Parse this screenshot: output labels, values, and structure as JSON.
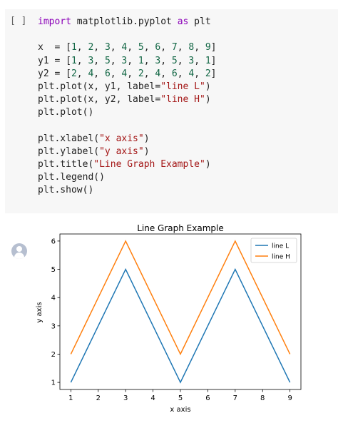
{
  "cell": {
    "run_indicator": "[ ]",
    "code_lines": [
      [
        {
          "t": "import",
          "c": "kw"
        },
        {
          "t": " matplotlib.pyplot ",
          "c": "op"
        },
        {
          "t": "as",
          "c": "kw"
        },
        {
          "t": " plt",
          "c": "op"
        }
      ],
      [],
      [
        {
          "t": "x  = [",
          "c": "op"
        },
        {
          "t": "1",
          "c": "num"
        },
        {
          "t": ", ",
          "c": "op"
        },
        {
          "t": "2",
          "c": "num"
        },
        {
          "t": ", ",
          "c": "op"
        },
        {
          "t": "3",
          "c": "num"
        },
        {
          "t": ", ",
          "c": "op"
        },
        {
          "t": "4",
          "c": "num"
        },
        {
          "t": ", ",
          "c": "op"
        },
        {
          "t": "5",
          "c": "num"
        },
        {
          "t": ", ",
          "c": "op"
        },
        {
          "t": "6",
          "c": "num"
        },
        {
          "t": ", ",
          "c": "op"
        },
        {
          "t": "7",
          "c": "num"
        },
        {
          "t": ", ",
          "c": "op"
        },
        {
          "t": "8",
          "c": "num"
        },
        {
          "t": ", ",
          "c": "op"
        },
        {
          "t": "9",
          "c": "num"
        },
        {
          "t": "]",
          "c": "op"
        }
      ],
      [
        {
          "t": "y1 = [",
          "c": "op"
        },
        {
          "t": "1",
          "c": "num"
        },
        {
          "t": ", ",
          "c": "op"
        },
        {
          "t": "3",
          "c": "num"
        },
        {
          "t": ", ",
          "c": "op"
        },
        {
          "t": "5",
          "c": "num"
        },
        {
          "t": ", ",
          "c": "op"
        },
        {
          "t": "3",
          "c": "num"
        },
        {
          "t": ", ",
          "c": "op"
        },
        {
          "t": "1",
          "c": "num"
        },
        {
          "t": ", ",
          "c": "op"
        },
        {
          "t": "3",
          "c": "num"
        },
        {
          "t": ", ",
          "c": "op"
        },
        {
          "t": "5",
          "c": "num"
        },
        {
          "t": ", ",
          "c": "op"
        },
        {
          "t": "3",
          "c": "num"
        },
        {
          "t": ", ",
          "c": "op"
        },
        {
          "t": "1",
          "c": "num"
        },
        {
          "t": "]",
          "c": "op"
        }
      ],
      [
        {
          "t": "y2 = [",
          "c": "op"
        },
        {
          "t": "2",
          "c": "num"
        },
        {
          "t": ", ",
          "c": "op"
        },
        {
          "t": "4",
          "c": "num"
        },
        {
          "t": ", ",
          "c": "op"
        },
        {
          "t": "6",
          "c": "num"
        },
        {
          "t": ", ",
          "c": "op"
        },
        {
          "t": "4",
          "c": "num"
        },
        {
          "t": ", ",
          "c": "op"
        },
        {
          "t": "2",
          "c": "num"
        },
        {
          "t": ", ",
          "c": "op"
        },
        {
          "t": "4",
          "c": "num"
        },
        {
          "t": ", ",
          "c": "op"
        },
        {
          "t": "6",
          "c": "num"
        },
        {
          "t": ", ",
          "c": "op"
        },
        {
          "t": "4",
          "c": "num"
        },
        {
          "t": ", ",
          "c": "op"
        },
        {
          "t": "2",
          "c": "num"
        },
        {
          "t": "]",
          "c": "op"
        }
      ],
      [
        {
          "t": "plt.plot(x, y1, label=",
          "c": "op"
        },
        {
          "t": "\"line L\"",
          "c": "str"
        },
        {
          "t": ")",
          "c": "op"
        }
      ],
      [
        {
          "t": "plt.plot(x, y2, label=",
          "c": "op"
        },
        {
          "t": "\"line H\"",
          "c": "str"
        },
        {
          "t": ")",
          "c": "op"
        }
      ],
      [
        {
          "t": "plt.plot()",
          "c": "op"
        }
      ],
      [],
      [
        {
          "t": "plt.xlabel(",
          "c": "op"
        },
        {
          "t": "\"x axis\"",
          "c": "str"
        },
        {
          "t": ")",
          "c": "op"
        }
      ],
      [
        {
          "t": "plt.ylabel(",
          "c": "op"
        },
        {
          "t": "\"y axis\"",
          "c": "str"
        },
        {
          "t": ")",
          "c": "op"
        }
      ],
      [
        {
          "t": "plt.title(",
          "c": "op"
        },
        {
          "t": "\"Line Graph Example\"",
          "c": "str"
        },
        {
          "t": ")",
          "c": "op"
        }
      ],
      [
        {
          "t": "plt.legend()",
          "c": "op"
        }
      ],
      [
        {
          "t": "plt.show()",
          "c": "op"
        }
      ]
    ]
  },
  "output": {
    "avatar_icon": "user-avatar-icon"
  },
  "chart_data": {
    "type": "line",
    "title": "Line Graph Example",
    "xlabel": "x axis",
    "ylabel": "y axis",
    "x": [
      1,
      2,
      3,
      4,
      5,
      6,
      7,
      8,
      9
    ],
    "series": [
      {
        "name": "line L",
        "color": "#1f77b4",
        "values": [
          1,
          3,
          5,
          3,
          1,
          3,
          5,
          3,
          1
        ]
      },
      {
        "name": "line H",
        "color": "#ff7f0e",
        "values": [
          2,
          4,
          6,
          4,
          2,
          4,
          6,
          4,
          2
        ]
      }
    ],
    "xticks": [
      "1",
      "2",
      "3",
      "4",
      "5",
      "6",
      "7",
      "8",
      "9"
    ],
    "yticks": [
      "1",
      "2",
      "3",
      "4",
      "5",
      "6"
    ],
    "xlim": [
      0.6,
      9.4
    ],
    "ylim": [
      0.75,
      6.25
    ],
    "grid": false,
    "legend_position": "top-right"
  }
}
